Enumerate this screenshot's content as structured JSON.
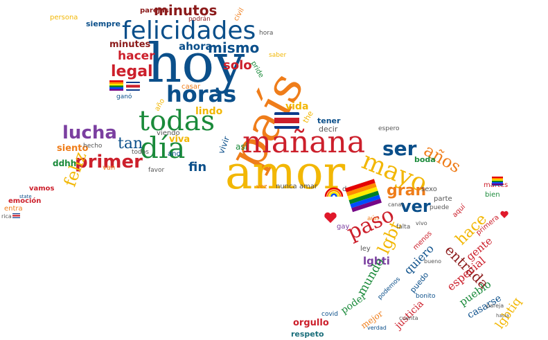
{
  "palette": {
    "blue": "#0b4f8a",
    "red": "#cc1f2b",
    "orange": "#ef7d1a",
    "yellow": "#f2b705",
    "green": "#1a8a3a",
    "purple": "#7b3fa0",
    "darkred": "#8b1a1a",
    "teal": "#1a6e7a",
    "gray": "#555555"
  },
  "words": {
    "hoy": "hoy",
    "pais": "país",
    "amor": "amor",
    "felicidades": "felicidades",
    "manana": "mañana",
    "dia": "día",
    "todas": "todas",
    "horas": "horas",
    "mayo": "mayo",
    "minutos": "minutos",
    "paso": "paso",
    "ser": "ser",
    "anos": "años",
    "lucha": "lucha",
    "primer": "primer",
    "gran": "gran",
    "ver": "ver",
    "legal": "legal",
    "hacer": "hacer",
    "mismo": "mismo",
    "ahora": "ahora",
    "minutes": "minutes",
    "solo": "solo",
    "lgbt": "lgbt",
    "hace": "hace",
    "entrada": "entrada",
    "feliz": "feliz",
    "tan": "tan",
    "fin": "fin",
    "lgbti": "lgbti",
    "mundo": "mundo",
    "quiero": "quiero",
    "especial": "especial",
    "pueblo": "pueblo",
    "gente": "gente",
    "lgbtiq": "lgbtiq",
    "casarse": "casarse",
    "poder": "poder",
    "justicia": "justicia",
    "orgullo": "orgullo",
    "respeto": "respeto",
    "mejor": "mejor",
    "siempre": "siempre",
    "parejas": "parejas",
    "civil": "civil",
    "persona": "persona",
    "vida": "vida",
    "lindo": "lindo",
    "viva": "viva",
    "vivir": "vivir",
    "asi": "así",
    "boda": "boda",
    "tener": "tener",
    "decir": "decir",
    "siento": "siento",
    "ddhh": "ddhh",
    "vamos": "vamos",
    "emocion": "emoción",
    "entra": "entra",
    "rica": "rica",
    "state": "state",
    "hecho": "hecho",
    "van": "van",
    "and": "and",
    "favor": "favor",
    "nunca": "nunca",
    "amar": "amar",
    "vez": "vez",
    "dos": "dos",
    "sexo": "sexo",
    "parte": "parte",
    "puede": "puede",
    "canal": "canal",
    "aun": "aún",
    "falta": "falta",
    "gay": "gay",
    "ley": "ley",
    "menos": "menos",
    "bueno": "bueno",
    "puedo": "puedo",
    "bonito": "bonito",
    "podemos": "podemos",
    "covid": "covid",
    "cuenta": "cuenta",
    "verdad": "verdad",
    "aqui": "aquí",
    "primera": "primera",
    "martes": "martes",
    "bien": "bien",
    "todos": "todos",
    "viendo": "viendo",
    "the": "the",
    "espero": "espero",
    "casar": "casar",
    "pride": "pride",
    "saber": "saber",
    "hora": "hora",
    "podran": "podrán",
    "gano": "ganó",
    "ano": "año",
    "ahi": "ahí",
    "vivo": "vivo",
    "pareja": "pareja",
    "hacia": "hacia"
  }
}
